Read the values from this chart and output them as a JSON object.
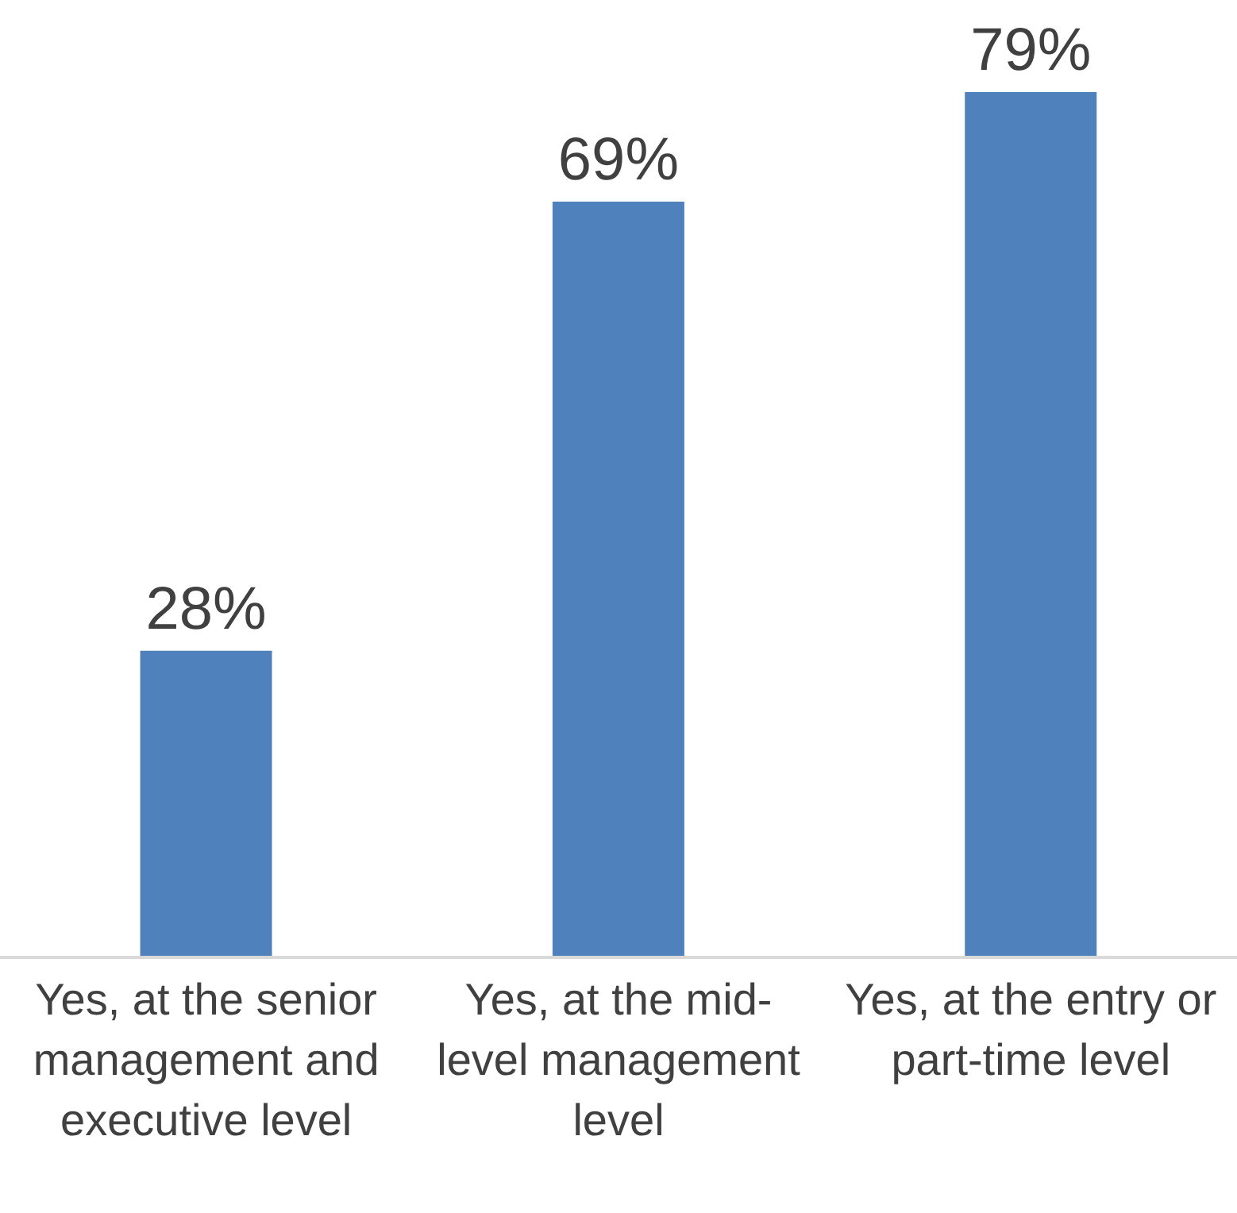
{
  "chart_data": {
    "type": "bar",
    "categories": [
      "Yes, at the senior management and executive level",
      "Yes, at the mid-level management level",
      "Yes, at the entry or part-time level"
    ],
    "values": [
      28,
      69,
      79
    ],
    "color": "#4f81bd",
    "value_labels": [
      "28%",
      "69%",
      "79%"
    ],
    "grid": false,
    "legend": false
  }
}
